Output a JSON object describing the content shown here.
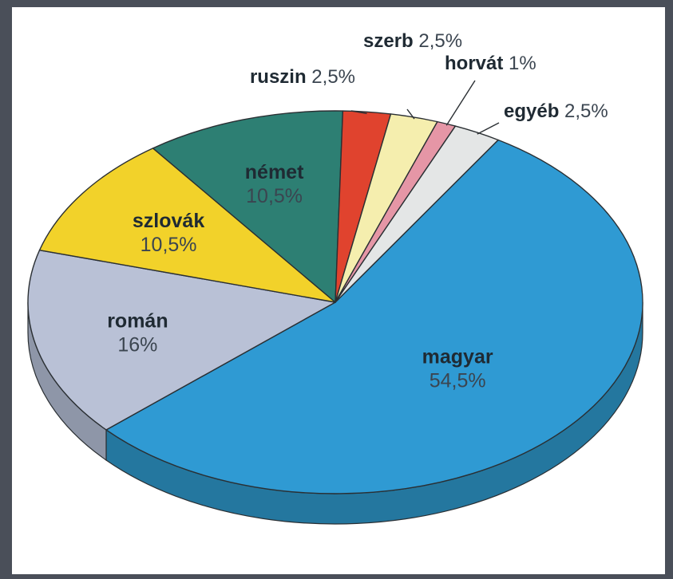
{
  "chart_data": {
    "type": "pie",
    "title": "",
    "slices": [
      {
        "name": "magyar",
        "value_label": "54,5%",
        "value": 54.5,
        "color": "#2f9ad3",
        "side": "#24779f"
      },
      {
        "name": "román",
        "value_label": "16%",
        "value": 16,
        "color": "#b9c1d6",
        "side": "#8e96a8"
      },
      {
        "name": "szlovák",
        "value_label": "10,5%",
        "value": 10.5,
        "color": "#f2d22a",
        "side": "#b89d1c"
      },
      {
        "name": "német",
        "value_label": "10,5%",
        "value": 10.5,
        "color": "#2d7f73",
        "side": "#1f5d54"
      },
      {
        "name": "ruszin",
        "value_label": "2,5%",
        "value": 2.5,
        "color": "#e0432e",
        "side": "#a22f20"
      },
      {
        "name": "szerb",
        "value_label": "2,5%",
        "value": 2.5,
        "color": "#f5eeae",
        "side": "#c4bd85"
      },
      {
        "name": "horvát",
        "value_label": "1%",
        "value": 1,
        "color": "#e596a6",
        "side": "#b26f7d"
      },
      {
        "name": "egyéb",
        "value_label": "2,5%",
        "value": 2.5,
        "color": "#e4e6e6",
        "side": "#b3b5b5"
      }
    ]
  }
}
